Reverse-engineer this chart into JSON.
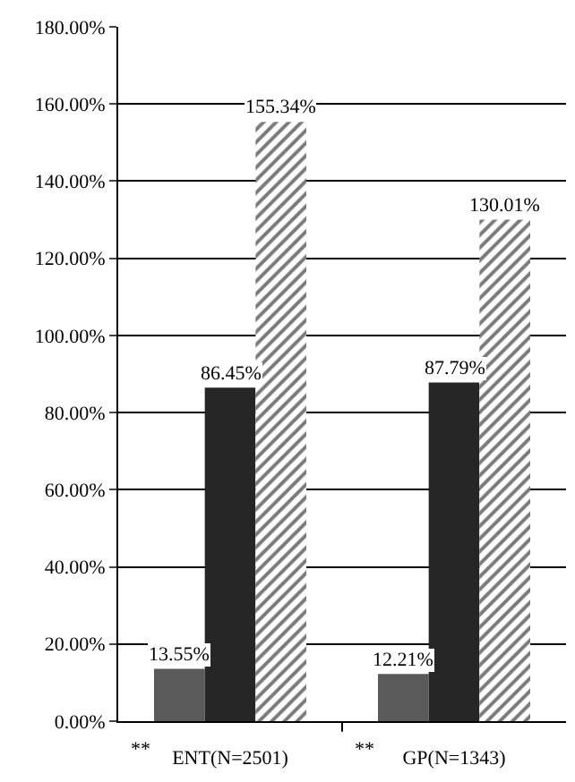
{
  "chart_data": {
    "type": "bar",
    "categories": [
      "ENT(N=2501)",
      "GP(N=1343)"
    ],
    "series": [
      {
        "color": "#5a5a5a",
        "values": [
          13.55,
          12.21
        ],
        "value_labels": [
          "13.55%",
          "12.21%"
        ]
      },
      {
        "color": "#262626",
        "values": [
          86.45,
          87.79
        ],
        "value_labels": [
          "86.45%",
          "87.79%"
        ]
      },
      {
        "color": "#7a7a7a",
        "values": [
          155.34,
          130.01
        ],
        "value_labels": [
          "155.34%",
          "130.01%"
        ]
      }
    ],
    "ylim": [
      0,
      180
    ],
    "yticks": [
      {
        "value": 0,
        "label": "0.00%"
      },
      {
        "value": 20,
        "label": "20.00%"
      },
      {
        "value": 40,
        "label": "40.00%"
      },
      {
        "value": 60,
        "label": "60.00%"
      },
      {
        "value": 80,
        "label": "80.00%"
      },
      {
        "value": 100,
        "label": "100.00%"
      },
      {
        "value": 120,
        "label": "120.00%"
      },
      {
        "value": 140,
        "label": "140.00%"
      },
      {
        "value": 160,
        "label": "160.00%"
      },
      {
        "value": 180,
        "label": "180.00%"
      }
    ],
    "grid": "y",
    "annotations": [
      "**",
      "**"
    ]
  }
}
